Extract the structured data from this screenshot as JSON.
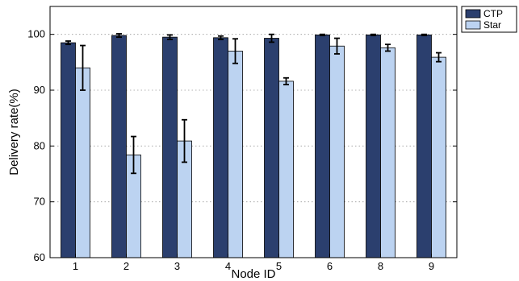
{
  "chart_data": {
    "type": "bar",
    "title": "",
    "xlabel": "Node ID",
    "ylabel": "Delivery rate(%)",
    "ylim": [
      60,
      105
    ],
    "yticks": [
      60,
      70,
      80,
      90,
      100
    ],
    "categories": [
      "1",
      "2",
      "3",
      "4",
      "5",
      "6",
      "8",
      "9"
    ],
    "series": [
      {
        "name": "CTP",
        "color": "#2b3f6e",
        "values": [
          98.5,
          99.8,
          99.5,
          99.4,
          99.3,
          99.9,
          99.9,
          99.9
        ],
        "error": [
          0.3,
          0.3,
          0.4,
          0.3,
          0.7,
          0.1,
          0.1,
          0.1
        ]
      },
      {
        "name": "Star",
        "color": "#bcd3f1",
        "values": [
          94.0,
          78.4,
          80.9,
          97.0,
          91.6,
          97.9,
          97.6,
          95.9
        ],
        "error": [
          4.0,
          3.3,
          3.8,
          2.2,
          0.6,
          1.4,
          0.6,
          0.8
        ]
      }
    ],
    "grid": "horizontal-dotted",
    "legend_position": "top-right"
  }
}
